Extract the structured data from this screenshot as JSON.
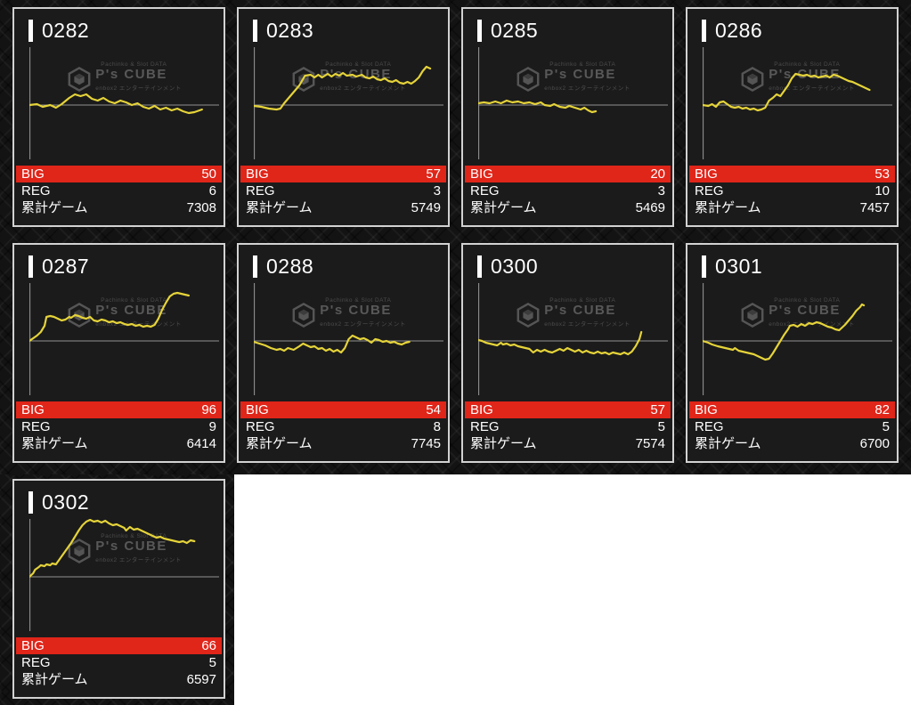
{
  "page": {
    "background": "#ffffff",
    "panel_texture": "dark diamond-plate pattern"
  },
  "labels": {
    "big": "BIG",
    "reg": "REG",
    "total_games": "累計ゲーム"
  },
  "watermark": {
    "top": "Pachinko & Slot DATA",
    "brand": "P's CUBE",
    "bottom": "enbox2 エンターテインメント"
  },
  "colors": {
    "accent_red": "#e02519",
    "line_yellow": "#e5d33a",
    "axis": "#909090",
    "card_bg": "#1b1b1b",
    "card_border": "#d2d2d2",
    "text": "#ffffff",
    "watermark_gray": "#585858"
  },
  "chart_meta": {
    "type": "line",
    "description": "slump graph per pachislot machine: net payout over games played",
    "x_axis_labels": "none",
    "y_axis_labels": "none",
    "y_zero_line": true,
    "grid": false,
    "legend": false,
    "y_units": "pixels above zero line (unlabeled in source)"
  },
  "chart_data": [
    {
      "type": "line",
      "title": "0282",
      "big": 50,
      "reg": 6,
      "total_games": 7308,
      "points": [
        [
          0,
          0
        ],
        [
          4,
          1
        ],
        [
          7,
          -2
        ],
        [
          11,
          0
        ],
        [
          14,
          -3
        ],
        [
          17,
          1
        ],
        [
          21,
          8
        ],
        [
          24,
          12
        ],
        [
          27,
          10
        ],
        [
          30,
          12
        ],
        [
          33,
          7
        ],
        [
          36,
          5
        ],
        [
          39,
          8
        ],
        [
          42,
          4
        ],
        [
          45,
          2
        ],
        [
          48,
          5
        ],
        [
          51,
          3
        ],
        [
          54,
          0
        ],
        [
          57,
          2
        ],
        [
          60,
          -2
        ],
        [
          63,
          -4
        ],
        [
          66,
          -1
        ],
        [
          69,
          -5
        ],
        [
          72,
          -3
        ],
        [
          75,
          -6
        ],
        [
          78,
          -4
        ],
        [
          81,
          -7
        ],
        [
          84,
          -9
        ],
        [
          87,
          -8
        ],
        [
          91,
          -5
        ]
      ]
    },
    {
      "type": "line",
      "title": "0283",
      "big": 57,
      "reg": 3,
      "total_games": 5749,
      "points": [
        [
          0,
          -1
        ],
        [
          4,
          -2
        ],
        [
          8,
          -4
        ],
        [
          12,
          -5
        ],
        [
          14,
          -4
        ],
        [
          16,
          2
        ],
        [
          20,
          12
        ],
        [
          24,
          22
        ],
        [
          27,
          33
        ],
        [
          30,
          34
        ],
        [
          32,
          31
        ],
        [
          34,
          34
        ],
        [
          36,
          31
        ],
        [
          39,
          35
        ],
        [
          41,
          32
        ],
        [
          43,
          35
        ],
        [
          45,
          33
        ],
        [
          47,
          36
        ],
        [
          49,
          33
        ],
        [
          52,
          34
        ],
        [
          54,
          32
        ],
        [
          57,
          34
        ],
        [
          59,
          31
        ],
        [
          61,
          30
        ],
        [
          63,
          32
        ],
        [
          65,
          29
        ],
        [
          67,
          28
        ],
        [
          69,
          30
        ],
        [
          71,
          27
        ],
        [
          73,
          26
        ],
        [
          75,
          28
        ],
        [
          77,
          25
        ],
        [
          79,
          24
        ],
        [
          81,
          26
        ],
        [
          83,
          24
        ],
        [
          85,
          27
        ],
        [
          87,
          31
        ],
        [
          89,
          38
        ],
        [
          91,
          43
        ],
        [
          93,
          41
        ]
      ]
    },
    {
      "type": "line",
      "title": "0285",
      "big": 20,
      "reg": 3,
      "total_games": 5469,
      "points": [
        [
          0,
          2
        ],
        [
          3,
          3
        ],
        [
          6,
          2
        ],
        [
          9,
          4
        ],
        [
          12,
          2
        ],
        [
          15,
          5
        ],
        [
          18,
          3
        ],
        [
          21,
          4
        ],
        [
          24,
          2
        ],
        [
          27,
          3
        ],
        [
          30,
          1
        ],
        [
          33,
          3
        ],
        [
          35,
          0
        ],
        [
          38,
          -1
        ],
        [
          40,
          1
        ],
        [
          43,
          -2
        ],
        [
          46,
          -3
        ],
        [
          48,
          -1
        ],
        [
          51,
          -3
        ],
        [
          54,
          -5
        ],
        [
          56,
          -3
        ],
        [
          58,
          -6
        ],
        [
          60,
          -8
        ],
        [
          62,
          -7
        ]
      ]
    },
    {
      "type": "line",
      "title": "0286",
      "big": 53,
      "reg": 10,
      "total_games": 7457,
      "points": [
        [
          0,
          0
        ],
        [
          3,
          -1
        ],
        [
          5,
          1
        ],
        [
          7,
          -2
        ],
        [
          9,
          3
        ],
        [
          11,
          4
        ],
        [
          13,
          1
        ],
        [
          15,
          -2
        ],
        [
          17,
          -3
        ],
        [
          19,
          -2
        ],
        [
          21,
          -4
        ],
        [
          23,
          -3
        ],
        [
          25,
          -5
        ],
        [
          27,
          -4
        ],
        [
          29,
          -6
        ],
        [
          31,
          -5
        ],
        [
          33,
          -3
        ],
        [
          35,
          5
        ],
        [
          37,
          8
        ],
        [
          39,
          12
        ],
        [
          41,
          10
        ],
        [
          43,
          16
        ],
        [
          45,
          22
        ],
        [
          47,
          30
        ],
        [
          49,
          35
        ],
        [
          51,
          34
        ],
        [
          53,
          33
        ],
        [
          55,
          34
        ],
        [
          57,
          32
        ],
        [
          59,
          33
        ],
        [
          61,
          31
        ],
        [
          63,
          32
        ],
        [
          65,
          33
        ],
        [
          67,
          31
        ],
        [
          69,
          34
        ],
        [
          71,
          33
        ],
        [
          73,
          31
        ],
        [
          75,
          29
        ],
        [
          77,
          27
        ],
        [
          79,
          26
        ],
        [
          81,
          24
        ],
        [
          83,
          22
        ],
        [
          85,
          20
        ],
        [
          87,
          18
        ],
        [
          88,
          17
        ]
      ]
    },
    {
      "type": "line",
      "title": "0287",
      "big": 96,
      "reg": 9,
      "total_games": 6414,
      "points": [
        [
          0,
          0
        ],
        [
          2,
          3
        ],
        [
          4,
          6
        ],
        [
          6,
          10
        ],
        [
          8,
          17
        ],
        [
          9,
          27
        ],
        [
          11,
          28
        ],
        [
          13,
          27
        ],
        [
          15,
          25
        ],
        [
          17,
          23
        ],
        [
          19,
          24
        ],
        [
          21,
          27
        ],
        [
          22,
          26
        ],
        [
          24,
          29
        ],
        [
          26,
          28
        ],
        [
          28,
          26
        ],
        [
          30,
          25
        ],
        [
          32,
          27
        ],
        [
          34,
          23
        ],
        [
          36,
          22
        ],
        [
          38,
          24
        ],
        [
          40,
          23
        ],
        [
          42,
          21
        ],
        [
          44,
          22
        ],
        [
          46,
          20
        ],
        [
          48,
          21
        ],
        [
          50,
          19
        ],
        [
          52,
          18
        ],
        [
          54,
          19
        ],
        [
          56,
          17
        ],
        [
          58,
          18
        ],
        [
          60,
          16
        ],
        [
          62,
          17
        ],
        [
          64,
          16
        ],
        [
          66,
          18
        ],
        [
          68,
          25
        ],
        [
          70,
          35
        ],
        [
          72,
          43
        ],
        [
          74,
          50
        ],
        [
          76,
          53
        ],
        [
          78,
          54
        ],
        [
          80,
          53
        ],
        [
          82,
          52
        ],
        [
          84,
          51
        ]
      ]
    },
    {
      "type": "line",
      "title": "0288",
      "big": 54,
      "reg": 8,
      "total_games": 7745,
      "points": [
        [
          0,
          -1
        ],
        [
          3,
          -3
        ],
        [
          6,
          -5
        ],
        [
          9,
          -8
        ],
        [
          12,
          -10
        ],
        [
          14,
          -9
        ],
        [
          16,
          -11
        ],
        [
          18,
          -8
        ],
        [
          21,
          -10
        ],
        [
          24,
          -6
        ],
        [
          26,
          -3
        ],
        [
          28,
          -5
        ],
        [
          30,
          -7
        ],
        [
          32,
          -6
        ],
        [
          34,
          -9
        ],
        [
          36,
          -8
        ],
        [
          38,
          -11
        ],
        [
          40,
          -9
        ],
        [
          42,
          -12
        ],
        [
          44,
          -10
        ],
        [
          46,
          -13
        ],
        [
          48,
          -8
        ],
        [
          50,
          2
        ],
        [
          52,
          6
        ],
        [
          54,
          4
        ],
        [
          56,
          2
        ],
        [
          58,
          3
        ],
        [
          60,
          1
        ],
        [
          62,
          -2
        ],
        [
          64,
          2
        ],
        [
          66,
          1
        ],
        [
          68,
          -1
        ],
        [
          70,
          0
        ],
        [
          72,
          -2
        ],
        [
          74,
          -1
        ],
        [
          76,
          -3
        ],
        [
          78,
          -4
        ],
        [
          80,
          -2
        ],
        [
          82,
          -1
        ]
      ]
    },
    {
      "type": "line",
      "title": "0300",
      "big": 57,
      "reg": 5,
      "total_games": 7574,
      "points": [
        [
          0,
          1
        ],
        [
          2,
          0
        ],
        [
          4,
          -2
        ],
        [
          6,
          -3
        ],
        [
          8,
          -4
        ],
        [
          10,
          -5
        ],
        [
          12,
          -2
        ],
        [
          13,
          -4
        ],
        [
          15,
          -3
        ],
        [
          17,
          -5
        ],
        [
          19,
          -4
        ],
        [
          21,
          -6
        ],
        [
          23,
          -7
        ],
        [
          25,
          -8
        ],
        [
          27,
          -9
        ],
        [
          29,
          -13
        ],
        [
          31,
          -10
        ],
        [
          33,
          -12
        ],
        [
          35,
          -10
        ],
        [
          37,
          -12
        ],
        [
          39,
          -13
        ],
        [
          41,
          -11
        ],
        [
          43,
          -9
        ],
        [
          45,
          -11
        ],
        [
          47,
          -8
        ],
        [
          49,
          -10
        ],
        [
          51,
          -12
        ],
        [
          53,
          -10
        ],
        [
          55,
          -13
        ],
        [
          57,
          -11
        ],
        [
          59,
          -13
        ],
        [
          61,
          -14
        ],
        [
          63,
          -12
        ],
        [
          65,
          -14
        ],
        [
          67,
          -13
        ],
        [
          69,
          -15
        ],
        [
          71,
          -13
        ],
        [
          73,
          -14
        ],
        [
          75,
          -15
        ],
        [
          77,
          -13
        ],
        [
          79,
          -15
        ],
        [
          81,
          -12
        ],
        [
          83,
          -6
        ],
        [
          85,
          2
        ],
        [
          86,
          10
        ]
      ]
    },
    {
      "type": "line",
      "title": "0301",
      "big": 82,
      "reg": 5,
      "total_games": 6700,
      "points": [
        [
          0,
          0
        ],
        [
          3,
          -2
        ],
        [
          5,
          -4
        ],
        [
          8,
          -6
        ],
        [
          10,
          -7
        ],
        [
          12,
          -8
        ],
        [
          14,
          -9
        ],
        [
          16,
          -10
        ],
        [
          17,
          -8
        ],
        [
          19,
          -11
        ],
        [
          21,
          -12
        ],
        [
          23,
          -13
        ],
        [
          25,
          -14
        ],
        [
          27,
          -15
        ],
        [
          29,
          -17
        ],
        [
          31,
          -19
        ],
        [
          33,
          -21
        ],
        [
          35,
          -20
        ],
        [
          37,
          -14
        ],
        [
          39,
          -7
        ],
        [
          41,
          0
        ],
        [
          43,
          7
        ],
        [
          45,
          13
        ],
        [
          46,
          17
        ],
        [
          48,
          18
        ],
        [
          50,
          16
        ],
        [
          52,
          19
        ],
        [
          54,
          17
        ],
        [
          56,
          20
        ],
        [
          58,
          19
        ],
        [
          60,
          21
        ],
        [
          62,
          20
        ],
        [
          64,
          18
        ],
        [
          66,
          16
        ],
        [
          68,
          15
        ],
        [
          70,
          13
        ],
        [
          72,
          12
        ],
        [
          73,
          14
        ],
        [
          75,
          18
        ],
        [
          77,
          23
        ],
        [
          79,
          28
        ],
        [
          81,
          34
        ],
        [
          83,
          38
        ],
        [
          84,
          41
        ],
        [
          85,
          40
        ]
      ]
    },
    {
      "type": "line",
      "title": "0302",
      "big": 66,
      "reg": 5,
      "total_games": 6597,
      "points": [
        [
          0,
          0
        ],
        [
          2,
          4
        ],
        [
          3,
          8
        ],
        [
          5,
          11
        ],
        [
          6,
          13
        ],
        [
          8,
          12
        ],
        [
          9,
          14
        ],
        [
          11,
          13
        ],
        [
          12,
          15
        ],
        [
          14,
          14
        ],
        [
          16,
          20
        ],
        [
          18,
          26
        ],
        [
          20,
          32
        ],
        [
          22,
          38
        ],
        [
          24,
          45
        ],
        [
          26,
          52
        ],
        [
          28,
          58
        ],
        [
          30,
          62
        ],
        [
          32,
          64
        ],
        [
          34,
          62
        ],
        [
          36,
          63
        ],
        [
          38,
          61
        ],
        [
          40,
          63
        ],
        [
          42,
          60
        ],
        [
          44,
          58
        ],
        [
          46,
          59
        ],
        [
          48,
          57
        ],
        [
          50,
          55
        ],
        [
          51,
          52
        ],
        [
          53,
          56
        ],
        [
          55,
          53
        ],
        [
          57,
          54
        ],
        [
          59,
          52
        ],
        [
          61,
          50
        ],
        [
          63,
          48
        ],
        [
          65,
          46
        ],
        [
          67,
          44
        ],
        [
          69,
          45
        ],
        [
          71,
          43
        ],
        [
          73,
          42
        ],
        [
          75,
          41
        ],
        [
          77,
          40
        ],
        [
          79,
          39
        ],
        [
          81,
          40
        ],
        [
          83,
          38
        ],
        [
          85,
          41
        ],
        [
          87,
          40
        ]
      ]
    }
  ]
}
